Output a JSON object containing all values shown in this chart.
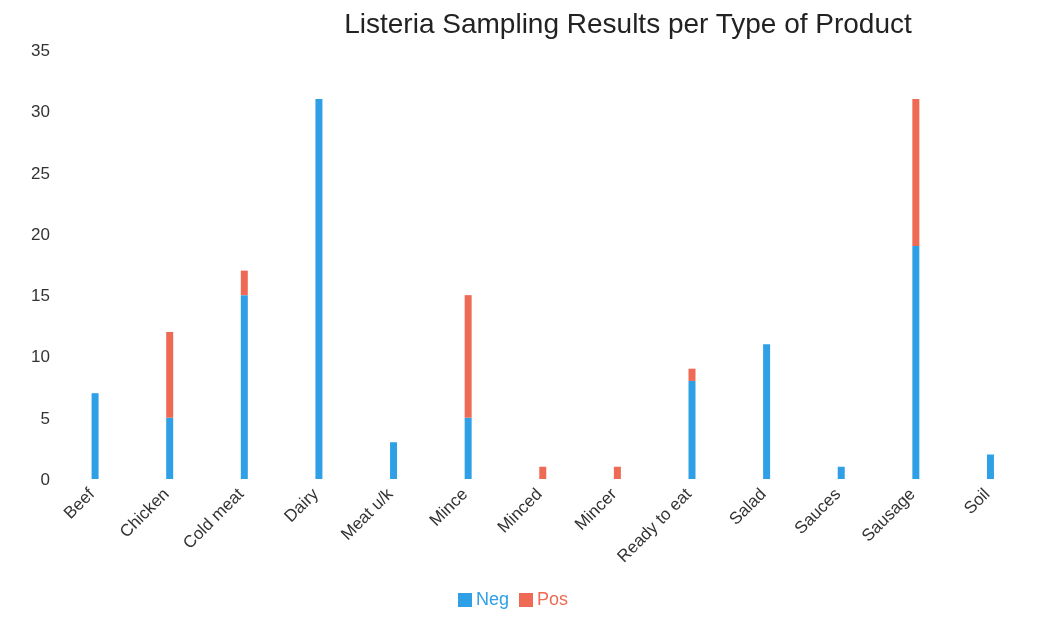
{
  "chart_data": {
    "type": "bar",
    "title": "Listeria Sampling Results per Type of Product",
    "categories": [
      "Beef",
      "Chicken",
      "Cold meat",
      "Dairy",
      "Meat u/k",
      "Mince",
      "Minced",
      "Mincer",
      "Ready to eat",
      "Salad",
      "Sauces",
      "Sausage",
      "Soil"
    ],
    "stacked": true,
    "series": [
      {
        "name": "Neg",
        "color": "#2fa0e6",
        "values": [
          7,
          5,
          15,
          31,
          3,
          5,
          0,
          0,
          8,
          11,
          1,
          19,
          2
        ]
      },
      {
        "name": "Pos",
        "color": "#ef6a55",
        "values": [
          0,
          7,
          2,
          0,
          0,
          10,
          1,
          1,
          1,
          0,
          0,
          12,
          0
        ]
      }
    ],
    "ylim": [
      0,
      35
    ],
    "yticks": [
      0,
      5,
      10,
      15,
      20,
      25,
      30,
      35
    ],
    "grid": false,
    "legend": "bottom"
  }
}
